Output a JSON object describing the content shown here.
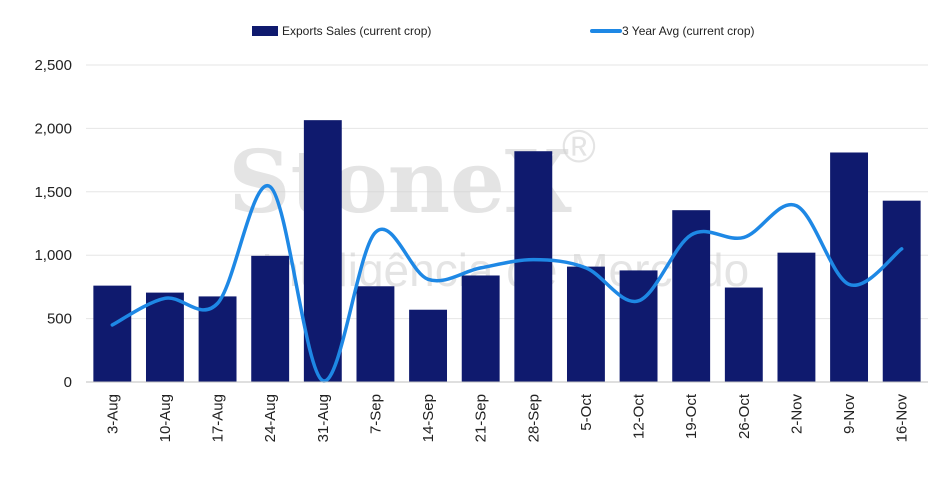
{
  "chart_data": {
    "type": "bar",
    "categories": [
      "3-Aug",
      "10-Aug",
      "17-Aug",
      "24-Aug",
      "31-Aug",
      "7-Sep",
      "14-Sep",
      "21-Sep",
      "28-Sep",
      "5-Oct",
      "12-Oct",
      "19-Oct",
      "26-Oct",
      "2-Nov",
      "9-Nov",
      "16-Nov"
    ],
    "series": [
      {
        "name": "Exports Sales (current crop)",
        "kind": "bar",
        "color": "#0f1a6e",
        "values": [
          760,
          705,
          675,
          995,
          2065,
          755,
          570,
          840,
          1820,
          910,
          880,
          1355,
          745,
          1020,
          1810,
          1430
        ]
      },
      {
        "name": "3 Year Avg (current crop)",
        "kind": "line",
        "color": "#1e88e5",
        "values": [
          450,
          660,
          620,
          1540,
          10,
          1180,
          810,
          900,
          965,
          900,
          640,
          1160,
          1140,
          1390,
          770,
          1050
        ]
      }
    ],
    "ylim": [
      0,
      2500
    ],
    "yticks": [
      0,
      500,
      1000,
      1500,
      2000,
      2500
    ],
    "ytick_labels": [
      "0",
      "500",
      "1,000",
      "1,500",
      "2,000",
      "2,500"
    ],
    "grid": true,
    "legend_position": "top-center"
  },
  "watermark": {
    "brand": "StoneX",
    "mark": "®",
    "subtitle": "Inteligência de Mercado"
  }
}
